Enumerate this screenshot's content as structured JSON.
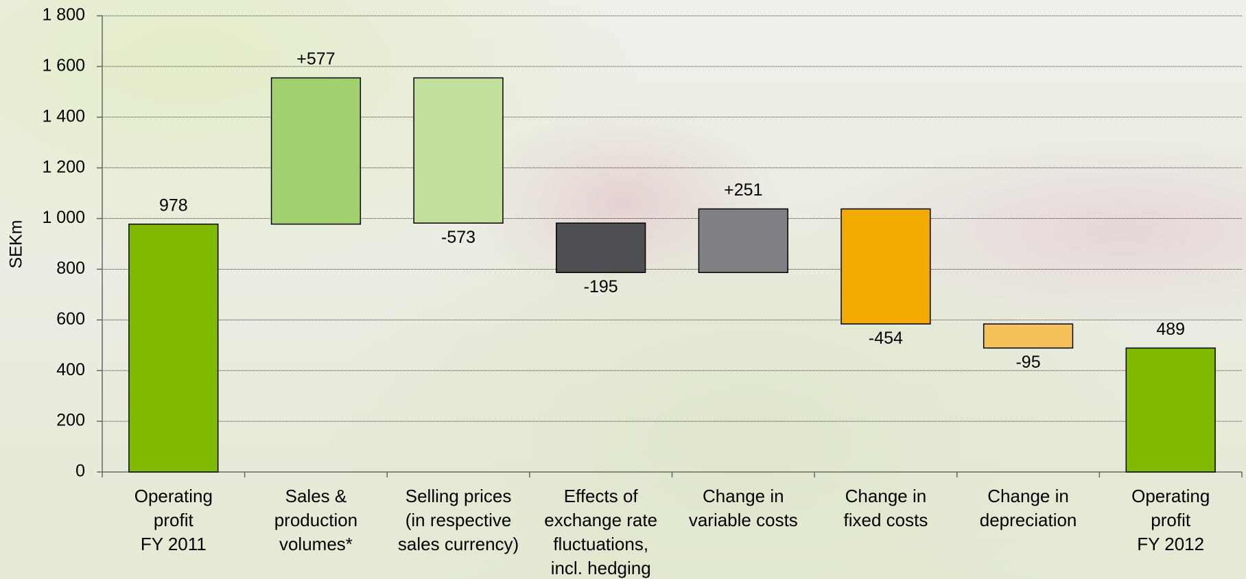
{
  "chart_data": {
    "type": "waterfall",
    "y_label": "SEKm",
    "categories": [
      "Operating\nprofit\nFY 2011",
      "Sales &\nproduction\nvolumes*",
      "Selling prices\n(in respective\nsales currency)",
      "Effects of\nexchange rate\nfluctuations,\nincl. hedging",
      "Change in\nvariable costs",
      "Change in\nfixed costs",
      "Change in\ndepreciation",
      "Operating\nprofit\nFY 2012"
    ],
    "values": [
      978,
      577,
      -573,
      -195,
      251,
      -454,
      -95,
      489
    ],
    "value_labels": [
      "978",
      "+577",
      "-573",
      "-195",
      "+251",
      "-454",
      "-95",
      "489"
    ],
    "colors": [
      "#7fba00",
      "#a3d06f",
      "#c2e09b",
      "#4d4f53",
      "#808184",
      "#f2a900",
      "#f5c15a",
      "#7fba00"
    ],
    "ylim": [
      0,
      1800
    ],
    "yticks": [
      0,
      200,
      400,
      600,
      800,
      {
        "value": 1000,
        "label": "1 000"
      },
      {
        "value": 1200,
        "label": "1 200"
      },
      {
        "value": 1400,
        "label": "1 400"
      },
      {
        "value": 1600,
        "label": "1 600"
      },
      {
        "value": 1800,
        "label": "1 800"
      }
    ],
    "grid": true
  }
}
